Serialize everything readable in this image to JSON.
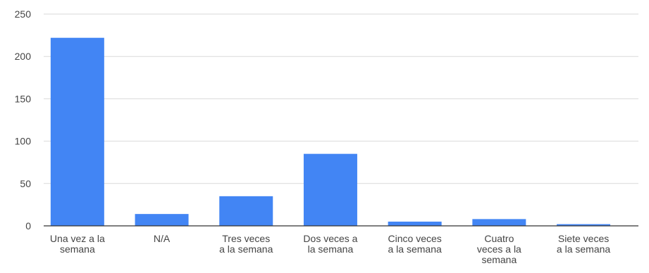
{
  "chart_data": {
    "type": "bar",
    "categories": [
      [
        "Una vez a la",
        "semana"
      ],
      [
        "N/A"
      ],
      [
        "Tres veces",
        "a la semana"
      ],
      [
        "Dos veces a",
        "la semana"
      ],
      [
        "Cinco veces",
        "a la semana"
      ],
      [
        "Cuatro",
        "veces a la",
        "semana"
      ],
      [
        "Siete veces",
        "a la semana"
      ]
    ],
    "values": [
      222,
      14,
      35,
      85,
      5,
      8,
      2
    ],
    "ylim": [
      0,
      250
    ],
    "yticks": [
      "0",
      "50",
      "100",
      "150",
      "200",
      "250"
    ],
    "title": "",
    "xlabel": "",
    "ylabel": "",
    "grid": true,
    "legend": "none",
    "colors": {
      "bar": "#4285f4",
      "grid": "#d9d9d9",
      "axis": "#333333",
      "text": "#444444"
    }
  }
}
